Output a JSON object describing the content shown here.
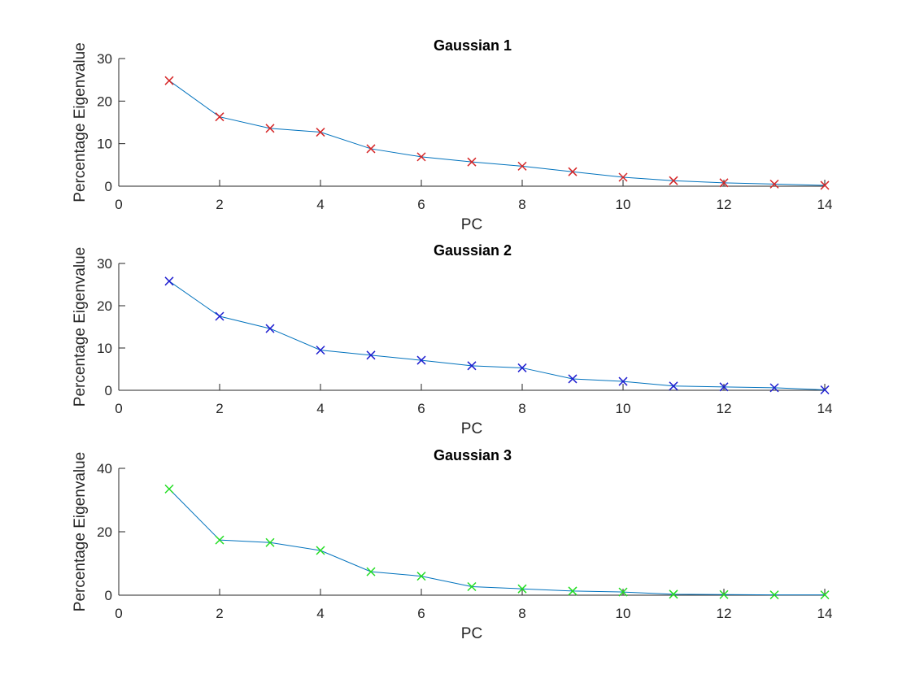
{
  "chart_data": [
    {
      "type": "line",
      "title": "Gaussian 1",
      "xlabel": "PC",
      "ylabel": "Percentage Eigenvalue",
      "xlim": [
        0,
        14
      ],
      "ylim": [
        0,
        30
      ],
      "xticks": [
        0,
        2,
        4,
        6,
        8,
        10,
        12,
        14
      ],
      "yticks": [
        0,
        10,
        20,
        30
      ],
      "grid": false,
      "marker": "x",
      "line_color": "#0072BD",
      "marker_color": "#D62728",
      "x": [
        1,
        2,
        3,
        4,
        5,
        6,
        7,
        8,
        9,
        10,
        11,
        12,
        13,
        14
      ],
      "values": [
        24.8,
        16.3,
        13.6,
        12.7,
        8.8,
        6.9,
        5.7,
        4.7,
        3.4,
        2.1,
        1.3,
        0.8,
        0.5,
        0.2
      ]
    },
    {
      "type": "line",
      "title": "Gaussian 2",
      "xlabel": "PC",
      "ylabel": "Percentage Eigenvalue",
      "xlim": [
        0,
        14
      ],
      "ylim": [
        0,
        30
      ],
      "xticks": [
        0,
        2,
        4,
        6,
        8,
        10,
        12,
        14
      ],
      "yticks": [
        0,
        10,
        20,
        30
      ],
      "grid": false,
      "marker": "x",
      "line_color": "#0072BD",
      "marker_color": "#1F1FD0",
      "x": [
        1,
        2,
        3,
        4,
        5,
        6,
        7,
        8,
        9,
        10,
        11,
        12,
        13,
        14
      ],
      "values": [
        25.8,
        17.5,
        14.6,
        9.5,
        8.3,
        7.1,
        5.8,
        5.3,
        2.7,
        2.1,
        1.0,
        0.8,
        0.6,
        0.1
      ]
    },
    {
      "type": "line",
      "title": "Gaussian 3",
      "xlabel": "PC",
      "ylabel": "Percentage Eigenvalue",
      "xlim": [
        0,
        14
      ],
      "ylim": [
        0,
        40
      ],
      "xticks": [
        0,
        2,
        4,
        6,
        8,
        10,
        12,
        14
      ],
      "yticks": [
        0,
        20,
        40
      ],
      "grid": false,
      "marker": "x",
      "line_color": "#0072BD",
      "marker_color": "#22DD22",
      "x": [
        1,
        2,
        3,
        4,
        5,
        6,
        7,
        8,
        9,
        10,
        11,
        12,
        13,
        14
      ],
      "values": [
        33.5,
        17.4,
        16.6,
        14.1,
        7.4,
        6.0,
        2.7,
        2.0,
        1.3,
        1.0,
        0.3,
        0.2,
        0.1,
        0.1
      ]
    }
  ]
}
